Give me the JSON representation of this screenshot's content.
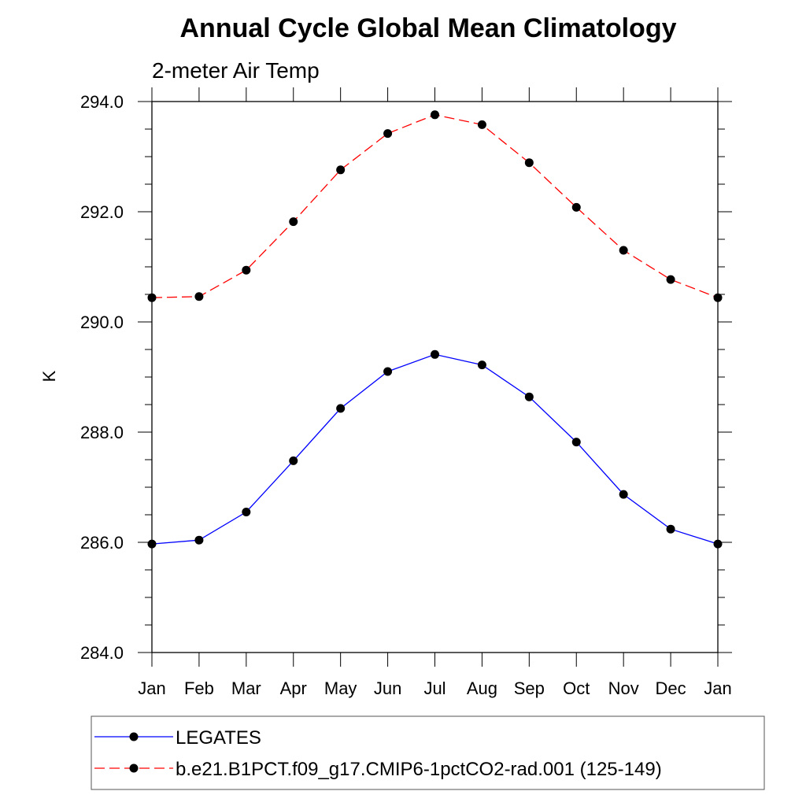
{
  "chart_data": {
    "type": "line",
    "title": "Annual Cycle Global Mean Climatology",
    "subtitle": "2-meter Air Temp",
    "xlabel": "",
    "ylabel": "K",
    "categories": [
      "Jan",
      "Feb",
      "Mar",
      "Apr",
      "May",
      "Jun",
      "Jul",
      "Aug",
      "Sep",
      "Oct",
      "Nov",
      "Dec",
      "Jan"
    ],
    "ylim": [
      284.0,
      294.0
    ],
    "yticks": [
      "294.0",
      "292.0",
      "290.0",
      "288.0",
      "286.0",
      "284.0"
    ],
    "ytick_values": [
      294.0,
      292.0,
      290.0,
      288.0,
      286.0,
      284.0
    ],
    "grid": false,
    "legend_position": "bottom",
    "series": [
      {
        "name": "LEGATES",
        "color": "#0000ff",
        "style": "solid",
        "values": [
          285.97,
          286.04,
          286.55,
          287.48,
          288.43,
          289.1,
          289.41,
          289.22,
          288.64,
          287.82,
          286.87,
          286.24,
          285.97
        ]
      },
      {
        "name": "b.e21.B1PCT.f09_g17.CMIP6-1pctCO2-rad.001 (125-149)",
        "color": "#ff0000",
        "style": "dashed",
        "values": [
          290.44,
          290.46,
          290.94,
          291.82,
          292.76,
          293.42,
          293.76,
          293.58,
          292.89,
          292.08,
          291.3,
          290.77,
          290.44
        ]
      }
    ]
  }
}
